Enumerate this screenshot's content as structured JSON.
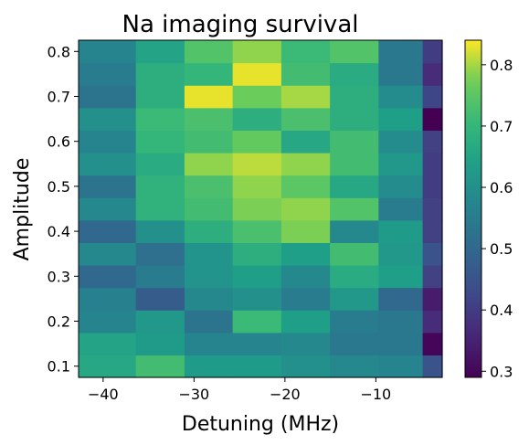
{
  "chart_data": {
    "type": "heatmap",
    "title": "Na imaging survival",
    "xlabel": "Detuning (MHz)",
    "ylabel": "Amplitude",
    "x_ticks": [
      -40,
      -30,
      -20,
      -10
    ],
    "x_tick_labels": [
      "−40",
      "−30",
      "−20",
      "−10"
    ],
    "y_ticks": [
      0.1,
      0.2,
      0.3,
      0.4,
      0.5,
      0.6,
      0.7,
      0.8
    ],
    "y_tick_labels": [
      "0.1",
      "0.2",
      "0.3",
      "0.4",
      "0.5",
      "0.6",
      "0.7",
      "0.8"
    ],
    "xlim": [
      -42.7,
      -2.7
    ],
    "ylim": [
      0.075,
      0.825
    ],
    "x": [
      -39.1,
      -33.7,
      -28.4,
      -23.1,
      -17.7,
      -12.4,
      -7.0,
      -2.7
    ],
    "y": [
      0.1,
      0.15,
      0.2,
      0.25,
      0.3,
      0.35,
      0.4,
      0.45,
      0.5,
      0.55,
      0.6,
      0.65,
      0.7,
      0.75,
      0.8
    ],
    "colormap": "viridis",
    "vmin": 0.29,
    "vmax": 0.84,
    "colorbar_ticks": [
      0.3,
      0.4,
      0.5,
      0.6,
      0.7,
      0.8
    ],
    "colorbar_tick_labels": [
      "0.3",
      "0.4",
      "0.5",
      "0.6",
      "0.7",
      "0.8"
    ],
    "values": [
      [
        0.66,
        0.72,
        0.63,
        0.63,
        0.6,
        0.58,
        0.57,
        0.45
      ],
      [
        0.65,
        0.63,
        0.57,
        0.57,
        0.58,
        0.54,
        0.54,
        0.3
      ],
      [
        0.57,
        0.62,
        0.53,
        0.71,
        0.64,
        0.55,
        0.54,
        0.37
      ],
      [
        0.56,
        0.47,
        0.58,
        0.6,
        0.55,
        0.62,
        0.5,
        0.34
      ],
      [
        0.5,
        0.55,
        0.61,
        0.64,
        0.58,
        0.67,
        0.64,
        0.41
      ],
      [
        0.58,
        0.52,
        0.61,
        0.68,
        0.64,
        0.72,
        0.62,
        0.45
      ],
      [
        0.5,
        0.6,
        0.68,
        0.73,
        0.78,
        0.58,
        0.63,
        0.41
      ],
      [
        0.58,
        0.69,
        0.72,
        0.78,
        0.79,
        0.74,
        0.55,
        0.41
      ],
      [
        0.53,
        0.69,
        0.73,
        0.79,
        0.75,
        0.66,
        0.59,
        0.4
      ],
      [
        0.6,
        0.67,
        0.79,
        0.81,
        0.79,
        0.72,
        0.62,
        0.4
      ],
      [
        0.57,
        0.7,
        0.72,
        0.76,
        0.66,
        0.72,
        0.59,
        0.41
      ],
      [
        0.6,
        0.71,
        0.73,
        0.68,
        0.73,
        0.68,
        0.64,
        0.29
      ],
      [
        0.53,
        0.68,
        0.83,
        0.77,
        0.8,
        0.68,
        0.59,
        0.42
      ],
      [
        0.55,
        0.68,
        0.7,
        0.83,
        0.72,
        0.67,
        0.54,
        0.37
      ],
      [
        0.57,
        0.65,
        0.74,
        0.79,
        0.71,
        0.74,
        0.54,
        0.4
      ]
    ]
  }
}
